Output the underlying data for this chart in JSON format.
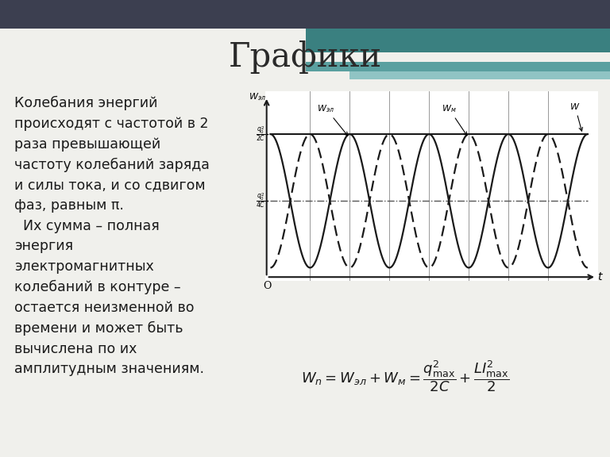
{
  "title": "Графики",
  "text_left": "Колебания энергий\nпроисходят с частотой в 2\nраза превышающей\nчастоту колебаний заряда\nи силы тока, и со сдвигом\nфаз, равным π.\n  Их сумма – полная\nэнергия\nэлектромагнитных\nколебаний в контуре –\nостается неизменной во\nвремени и может быть\nвычислена по их\nамплитудным значениям.",
  "background_color": "#f0f0ec",
  "title_fontsize": 30,
  "text_fontsize": 12.5,
  "solid_color": "#1a1a1a",
  "dashed_color": "#1a1a1a",
  "amplitude": 1.0,
  "half_amplitude": 0.5,
  "num_periods": 4,
  "header_dark": "#3c3f50",
  "header_teal1": "#3a8080",
  "header_teal2": "#5aa0a0",
  "header_teal3": "#90c4c4",
  "header_white": "#f0f0ec"
}
